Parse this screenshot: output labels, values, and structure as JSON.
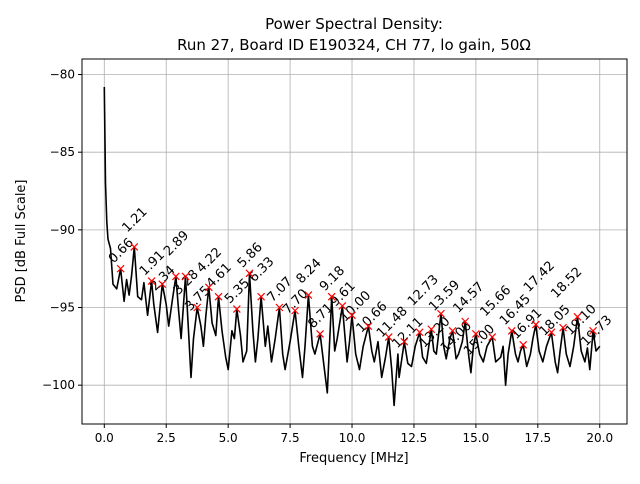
{
  "chart_data": {
    "type": "line",
    "title": "Power Spectral Density:",
    "subtitle": "Run 27, Board ID E190324, CH 77, lo gain, 50Ω",
    "xlabel": "Frequency [MHz]",
    "ylabel": "PSD [dB Full Scale]",
    "xlim": [
      -0.9,
      21.1
    ],
    "ylim": [
      -102.5,
      -79
    ],
    "grid": true,
    "xticks": [
      0,
      2.5,
      5,
      7.5,
      10,
      12.5,
      15,
      17.5,
      20
    ],
    "xtick_labels": [
      "0.0",
      "2.5",
      "5.0",
      "7.5",
      "10.0",
      "12.5",
      "15.0",
      "17.5",
      "20.0"
    ],
    "yticks": [
      -100,
      -95,
      -90,
      -85,
      -80
    ],
    "ytick_labels": [
      "−100",
      "−95",
      "−90",
      "−85",
      "−80"
    ],
    "series": {
      "name": "PSD",
      "color": "#000000",
      "x": [
        0,
        0.05,
        0.1,
        0.15,
        0.25,
        0.35,
        0.5,
        0.66,
        0.8,
        0.9,
        1.0,
        1.1,
        1.21,
        1.35,
        1.5,
        1.6,
        1.75,
        1.91,
        2.0,
        2.15,
        2.25,
        2.34,
        2.5,
        2.6,
        2.75,
        2.89,
        3.0,
        3.1,
        3.28,
        3.4,
        3.5,
        3.6,
        3.75,
        3.9,
        4.0,
        4.1,
        4.22,
        4.35,
        4.5,
        4.61,
        4.75,
        4.9,
        5.0,
        5.15,
        5.25,
        5.35,
        5.5,
        5.6,
        5.75,
        5.86,
        6.0,
        6.1,
        6.2,
        6.33,
        6.5,
        6.6,
        6.75,
        6.9,
        7.07,
        7.2,
        7.3,
        7.5,
        7.7,
        7.85,
        8.0,
        8.1,
        8.24,
        8.4,
        8.5,
        8.71,
        8.85,
        9.0,
        9.18,
        9.3,
        9.4,
        9.61,
        9.8,
        9.9,
        10.0,
        10.15,
        10.3,
        10.45,
        10.66,
        10.8,
        10.9,
        11.05,
        11.2,
        11.35,
        11.48,
        11.6,
        11.7,
        11.85,
        11.9,
        12.11,
        12.25,
        12.4,
        12.55,
        12.73,
        12.85,
        13.0,
        13.2,
        13.3,
        13.4,
        13.59,
        13.7,
        13.8,
        13.95,
        14.06,
        14.2,
        14.3,
        14.45,
        14.57,
        14.7,
        14.8,
        14.9,
        15.0,
        15.15,
        15.3,
        15.45,
        15.66,
        15.8,
        16.0,
        16.1,
        16.2,
        16.3,
        16.45,
        16.6,
        16.7,
        16.8,
        16.91,
        17.05,
        17.2,
        17.3,
        17.42,
        17.55,
        17.7,
        17.85,
        18.05,
        18.2,
        18.3,
        18.4,
        18.52,
        18.65,
        18.8,
        18.95,
        19.1,
        19.25,
        19.4,
        19.5,
        19.6,
        19.73,
        19.85,
        20.0
      ],
      "y": [
        -80.8,
        -87,
        -89.5,
        -90.6,
        -91.2,
        -93.5,
        -93.8,
        -92.5,
        -94.6,
        -93.2,
        -94.2,
        -93.0,
        -91.1,
        -94.3,
        -94.5,
        -93.4,
        -95.5,
        -93.3,
        -94.8,
        -96.6,
        -95.0,
        -93.5,
        -94.8,
        -96.2,
        -94.5,
        -93.0,
        -95.2,
        -97.0,
        -93.0,
        -96.5,
        -99.5,
        -97.0,
        -95.0,
        -96.2,
        -97.5,
        -95.5,
        -93.7,
        -96.0,
        -96.8,
        -94.3,
        -96.5,
        -98.2,
        -99.0,
        -96.5,
        -97.0,
        -95.1,
        -96.8,
        -98.5,
        -97.8,
        -92.8,
        -96.5,
        -98.5,
        -97.0,
        -94.3,
        -97.5,
        -96.2,
        -98.5,
        -97.0,
        -95.0,
        -98.0,
        -99.0,
        -97.2,
        -95.2,
        -97.5,
        -99.5,
        -97.5,
        -94.2,
        -97.5,
        -98.0,
        -96.7,
        -98.5,
        -100.5,
        -94.3,
        -97.8,
        -97.0,
        -94.9,
        -98.5,
        -97.2,
        -95.5,
        -98.0,
        -99.0,
        -97.5,
        -96.2,
        -97.8,
        -98.5,
        -97.2,
        -99.5,
        -98.2,
        -96.9,
        -99.0,
        -101.3,
        -98.0,
        -99.5,
        -97.2,
        -98.6,
        -98.8,
        -97.5,
        -96.6,
        -98.2,
        -98.6,
        -96.4,
        -97.8,
        -98.0,
        -95.4,
        -97.5,
        -98.3,
        -97.0,
        -96.5,
        -98.3,
        -98.0,
        -97.2,
        -95.9,
        -98.0,
        -99.2,
        -97.5,
        -96.7,
        -98.0,
        -98.5,
        -97.5,
        -96.9,
        -98.5,
        -98.2,
        -97.5,
        -100.0,
        -98.0,
        -96.5,
        -98.0,
        -98.5,
        -97.8,
        -97.4,
        -98.8,
        -98.0,
        -97.0,
        -96.1,
        -97.8,
        -98.5,
        -97.5,
        -96.6,
        -98.5,
        -99.2,
        -97.8,
        -96.3,
        -98.0,
        -98.8,
        -97.5,
        -95.6,
        -97.8,
        -98.5,
        -97.6,
        -99.0,
        -96.5,
        -97.8,
        -97.5
      ]
    },
    "peaks": {
      "marker_color": "#ff0000",
      "x": [
        0.66,
        1.21,
        1.91,
        2.34,
        2.89,
        3.28,
        3.75,
        4.22,
        4.61,
        5.35,
        5.86,
        6.33,
        7.07,
        7.7,
        8.24,
        8.71,
        9.18,
        9.61,
        10.0,
        10.66,
        11.48,
        12.11,
        12.73,
        13.2,
        13.59,
        14.06,
        14.57,
        15.0,
        15.66,
        16.45,
        16.91,
        17.42,
        18.05,
        18.52,
        19.1,
        19.73
      ],
      "y": [
        -92.5,
        -91.1,
        -93.3,
        -93.5,
        -93.0,
        -93.0,
        -95.0,
        -93.7,
        -94.3,
        -95.1,
        -92.8,
        -94.3,
        -95.0,
        -95.2,
        -94.2,
        -96.7,
        -94.3,
        -94.9,
        -95.5,
        -96.2,
        -96.9,
        -97.2,
        -96.6,
        -96.4,
        -95.4,
        -96.5,
        -95.9,
        -96.7,
        -96.9,
        -96.5,
        -97.4,
        -96.1,
        -96.6,
        -96.3,
        -95.6,
        -96.5
      ],
      "labels": [
        "0.66",
        "1.21",
        "1.91",
        "2.34",
        "2.89",
        "3.28",
        "3.75",
        "4.22",
        "4.61",
        "5.35",
        "5.86",
        "6.33",
        "7.07",
        "7.70",
        "8.24",
        "8.71",
        "9.18",
        "9.61",
        "10.00",
        "10.66",
        "11.48",
        "12.11",
        "12.73",
        "13.20",
        "13.59",
        "14.06",
        "14.57",
        "15.00",
        "15.66",
        "16.45",
        "16.91",
        "17.42",
        "18.05",
        "18.52",
        "19.10",
        "19.73"
      ]
    }
  }
}
